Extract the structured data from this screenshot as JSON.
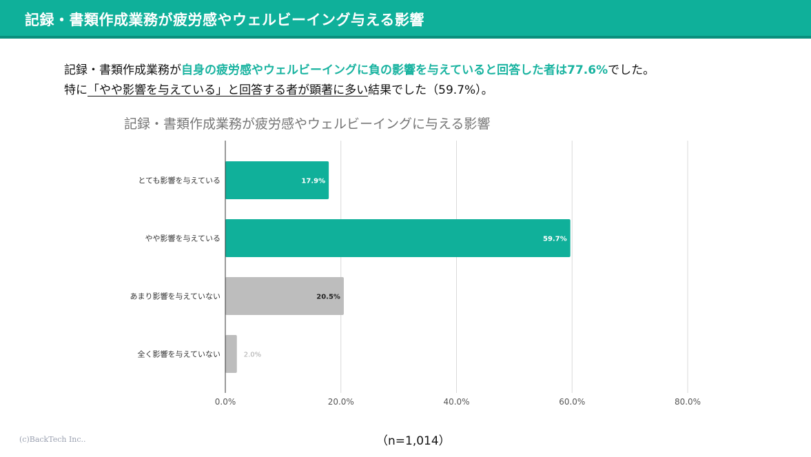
{
  "header": {
    "title": "記録・書類作成業務が疲労感やウェルビーイング与える影響"
  },
  "summary": {
    "line1_prefix": "記録・書類作成業務が",
    "line1_highlight": "自身の疲労感やウェルビーイングに負の影響を与えていると回答した者は77.6%",
    "line1_suffix": "でした。",
    "line2_prefix": "特に",
    "line2_underlined": "「やや影響を与えている」と回答する者が顕著に多い",
    "line2_suffix": "結果でした（59.7%）。"
  },
  "colors": {
    "header_bg": "#0fb09a",
    "accent": "#19b3a0",
    "bar_teal": "#10b09a",
    "bar_gray": "#bdbdbd",
    "grid": "#d9d9d9"
  },
  "chart_data": {
    "type": "bar",
    "orientation": "horizontal",
    "title": "記録・書類作成業務が疲労感やウェルビーイングに与える影響",
    "categories": [
      "とても影響を与えている",
      "やや影響を与えている",
      "あまり影響を与えていない",
      "全く影響を与えていない"
    ],
    "values": [
      17.9,
      59.7,
      20.5,
      2.0
    ],
    "value_labels": [
      "17.9%",
      "59.7%",
      "20.5%",
      "2.0%"
    ],
    "bar_colors": [
      "#10b09a",
      "#10b09a",
      "#bdbdbd",
      "#bdbdbd"
    ],
    "xlim": [
      0,
      80
    ],
    "x_ticks": [
      "0.0%",
      "20.0%",
      "40.0%",
      "60.0%",
      "80.0%"
    ],
    "grid": true,
    "xlabel": "",
    "ylabel": ""
  },
  "footer": {
    "copyright": "(c)BackTech Inc..",
    "sample_size": "（n=1,014）"
  }
}
